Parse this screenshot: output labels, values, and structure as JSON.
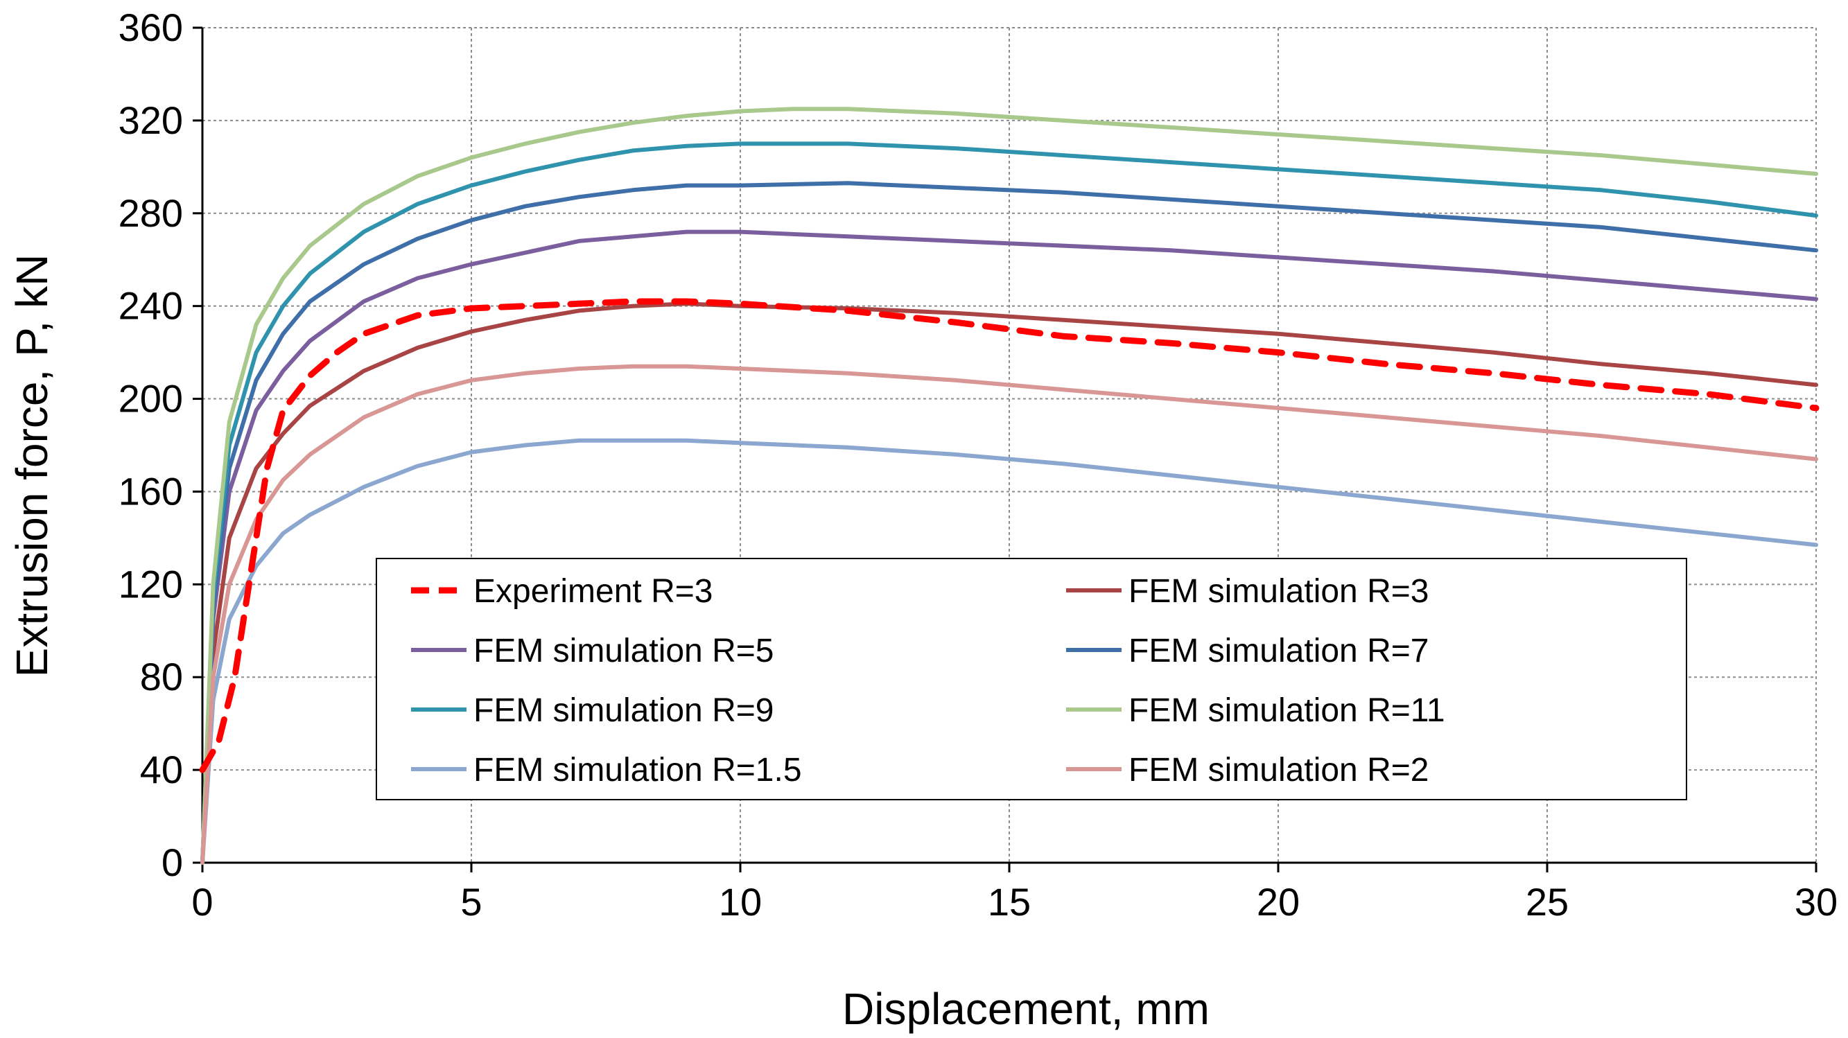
{
  "chart_data": {
    "type": "line",
    "title": "",
    "xlabel": "Displacement, mm",
    "ylabel": "Extrusion force, P, kN",
    "xlim": [
      0,
      30
    ],
    "ylim": [
      0,
      360
    ],
    "xticks": [
      0,
      5,
      10,
      15,
      20,
      25,
      30
    ],
    "yticks": [
      0,
      40,
      80,
      120,
      160,
      200,
      240,
      280,
      320,
      360
    ],
    "grid": true,
    "legend_position": "lower-center",
    "series": [
      {
        "name": "Experiment R=3",
        "color": "#ff0000",
        "dash": true,
        "x": [
          0,
          0.3,
          0.6,
          0.9,
          1.2,
          1.5,
          2.0,
          2.5,
          3.0,
          4.0,
          5.0,
          6.0,
          7.0,
          8.0,
          9.0,
          10.0,
          12.0,
          14.0,
          16.0,
          18.0,
          20.0,
          22.0,
          24.0,
          26.0,
          28.0,
          30.0
        ],
        "y": [
          40,
          52,
          80,
          125,
          170,
          195,
          210,
          220,
          228,
          236,
          239,
          240,
          241,
          242,
          242,
          241,
          238,
          233,
          227,
          224,
          220,
          215,
          211,
          206,
          202,
          196
        ]
      },
      {
        "name": "FEM simulation R=3",
        "color": "#a84444",
        "dash": false,
        "x": [
          0,
          0.2,
          0.5,
          1.0,
          1.5,
          2.0,
          3.0,
          4.0,
          5.0,
          6.0,
          7.0,
          8.0,
          9.0,
          10.0,
          12.0,
          14.0,
          16.0,
          18.0,
          20.0,
          22.0,
          24.0,
          26.0,
          28.0,
          30.0
        ],
        "y": [
          0,
          90,
          140,
          170,
          185,
          197,
          212,
          222,
          229,
          234,
          238,
          240,
          241,
          240,
          239,
          237,
          234,
          231,
          228,
          224,
          220,
          215,
          211,
          206
        ]
      },
      {
        "name": "FEM simulation R=5",
        "color": "#7b5e9e",
        "dash": false,
        "x": [
          0,
          0.2,
          0.5,
          1.0,
          1.5,
          2.0,
          3.0,
          4.0,
          5.0,
          6.0,
          7.0,
          8.0,
          9.0,
          10.0,
          12.0,
          14.0,
          16.0,
          18.0,
          20.0,
          22.0,
          24.0,
          26.0,
          28.0,
          30.0
        ],
        "y": [
          0,
          105,
          160,
          195,
          212,
          225,
          242,
          252,
          258,
          263,
          268,
          270,
          272,
          272,
          270,
          268,
          266,
          264,
          261,
          258,
          255,
          251,
          247,
          243
        ]
      },
      {
        "name": "FEM simulation R=7",
        "color": "#3f6fa8",
        "dash": false,
        "x": [
          0,
          0.2,
          0.5,
          1.0,
          1.5,
          2.0,
          3.0,
          4.0,
          5.0,
          6.0,
          7.0,
          8.0,
          9.0,
          10.0,
          12.0,
          14.0,
          16.0,
          18.0,
          20.0,
          22.0,
          24.0,
          26.0,
          28.0,
          30.0
        ],
        "y": [
          0,
          110,
          170,
          208,
          228,
          242,
          258,
          269,
          277,
          283,
          287,
          290,
          292,
          292,
          293,
          291,
          289,
          286,
          283,
          280,
          277,
          274,
          269,
          264
        ]
      },
      {
        "name": "FEM simulation R=9",
        "color": "#2f93ad",
        "dash": false,
        "x": [
          0,
          0.2,
          0.5,
          1.0,
          1.5,
          2.0,
          3.0,
          4.0,
          5.0,
          6.0,
          7.0,
          8.0,
          9.0,
          10.0,
          12.0,
          14.0,
          16.0,
          18.0,
          20.0,
          22.0,
          24.0,
          26.0,
          28.0,
          30.0
        ],
        "y": [
          0,
          115,
          180,
          220,
          240,
          254,
          272,
          284,
          292,
          298,
          303,
          307,
          309,
          310,
          310,
          308,
          305,
          302,
          299,
          296,
          293,
          290,
          285,
          279
        ]
      },
      {
        "name": "FEM simulation R=11",
        "color": "#a9c88c",
        "dash": false,
        "x": [
          0,
          0.2,
          0.5,
          1.0,
          1.5,
          2.0,
          3.0,
          4.0,
          5.0,
          6.0,
          7.0,
          8.0,
          9.0,
          10.0,
          11.0,
          12.0,
          14.0,
          16.0,
          18.0,
          20.0,
          22.0,
          24.0,
          26.0,
          28.0,
          30.0
        ],
        "y": [
          0,
          120,
          190,
          232,
          252,
          266,
          284,
          296,
          304,
          310,
          315,
          319,
          322,
          324,
          325,
          325,
          323,
          320,
          317,
          314,
          311,
          308,
          305,
          301,
          297
        ]
      },
      {
        "name": "FEM simulation R=1.5",
        "color": "#8ba7cf",
        "dash": false,
        "x": [
          0,
          0.2,
          0.5,
          1.0,
          1.5,
          2.0,
          3.0,
          4.0,
          5.0,
          6.0,
          7.0,
          8.0,
          9.0,
          10.0,
          12.0,
          14.0,
          16.0,
          18.0,
          20.0,
          22.0,
          24.0,
          26.0,
          28.0,
          30.0
        ],
        "y": [
          0,
          70,
          105,
          128,
          142,
          150,
          162,
          171,
          177,
          180,
          182,
          182,
          182,
          181,
          179,
          176,
          172,
          167,
          162,
          157,
          152,
          147,
          142,
          137
        ]
      },
      {
        "name": "FEM simulation R=2",
        "color": "#d89694",
        "dash": false,
        "x": [
          0,
          0.2,
          0.5,
          1.0,
          1.5,
          2.0,
          3.0,
          4.0,
          5.0,
          6.0,
          7.0,
          8.0,
          9.0,
          10.0,
          12.0,
          14.0,
          16.0,
          18.0,
          20.0,
          22.0,
          24.0,
          26.0,
          28.0,
          30.0
        ],
        "y": [
          0,
          80,
          120,
          148,
          165,
          176,
          192,
          202,
          208,
          211,
          213,
          214,
          214,
          213,
          211,
          208,
          204,
          200,
          196,
          192,
          188,
          184,
          179,
          174
        ]
      }
    ]
  }
}
